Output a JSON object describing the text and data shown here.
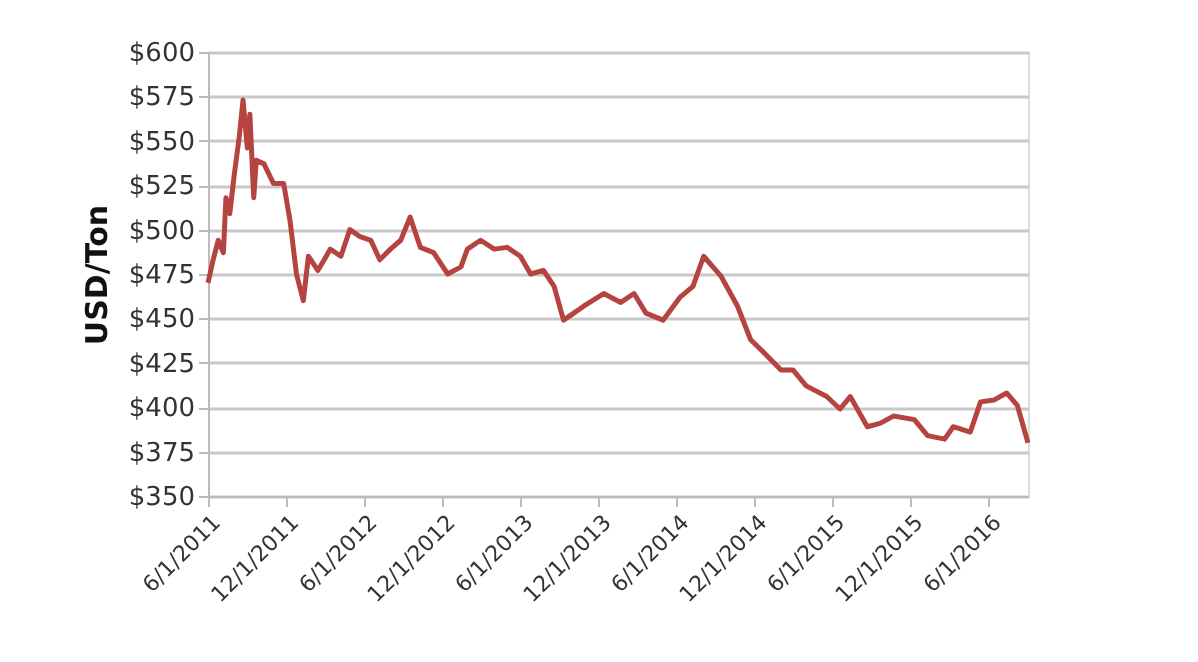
{
  "chart_data": {
    "type": "line",
    "ylabel": "USD/Ton",
    "x": [
      "2011-06-01",
      "2011-06-13",
      "2011-06-25",
      "2011-07-07",
      "2011-07-13",
      "2011-07-22",
      "2011-08-01",
      "2011-08-13",
      "2011-08-22",
      "2011-09-01",
      "2011-09-07",
      "2011-09-16",
      "2011-09-22",
      "2011-10-10",
      "2011-11-01",
      "2011-11-25",
      "2011-12-10",
      "2011-12-25",
      "2012-01-10",
      "2012-01-22",
      "2012-02-13",
      "2012-02-28",
      "2012-03-13",
      "2012-04-07",
      "2012-04-28",
      "2012-05-22",
      "2012-06-16",
      "2012-07-07",
      "2012-08-01",
      "2012-08-25",
      "2012-09-16",
      "2012-10-10",
      "2012-11-10",
      "2012-12-13",
      "2013-01-13",
      "2013-01-28",
      "2013-02-28",
      "2013-04-01",
      "2013-05-01",
      "2013-06-01",
      "2013-06-25",
      "2013-07-25",
      "2013-08-19",
      "2013-09-10",
      "2013-10-04",
      "2013-10-28",
      "2013-12-13",
      "2014-01-22",
      "2014-02-22",
      "2014-03-22",
      "2014-05-01",
      "2014-06-10",
      "2014-07-10",
      "2014-08-04",
      "2014-09-13",
      "2014-10-22",
      "2014-11-22",
      "2014-12-22",
      "2015-02-01",
      "2015-03-01",
      "2015-04-01",
      "2015-05-19",
      "2015-06-19",
      "2015-07-13",
      "2015-08-22",
      "2015-09-22",
      "2015-10-22",
      "2015-12-10",
      "2016-01-10",
      "2016-02-19",
      "2016-03-10",
      "2016-04-19",
      "2016-05-13",
      "2016-06-13",
      "2016-07-13",
      "2016-08-07",
      "2016-09-01"
    ],
    "series": [
      {
        "color": "#b5433f",
        "values": [
          470,
          483,
          494,
          487,
          518,
          509,
          530,
          552,
          573,
          546,
          565,
          518,
          539,
          537,
          526,
          526,
          505,
          475,
          460,
          485,
          477,
          483,
          489,
          485,
          500,
          496,
          494,
          483,
          489,
          494,
          507,
          490,
          487,
          475,
          479,
          489,
          494,
          489,
          490,
          485,
          475,
          477,
          468,
          449,
          453,
          457,
          464,
          459,
          464,
          453,
          449,
          462,
          468,
          485,
          474,
          457,
          438,
          431,
          421,
          421,
          412,
          406,
          399,
          406,
          389,
          391,
          395,
          393,
          384,
          382,
          389,
          386,
          403,
          404,
          408,
          401,
          380
        ]
      }
    ],
    "xlim": [
      "2011-06-01",
      "2016-09-01"
    ],
    "xticks": [
      {
        "value": "2011-06-01",
        "label": "6/1/2011"
      },
      {
        "value": "2011-12-01",
        "label": "12/1/2011"
      },
      {
        "value": "2012-06-01",
        "label": "6/1/2012"
      },
      {
        "value": "2012-12-01",
        "label": "12/1/2012"
      },
      {
        "value": "2013-06-01",
        "label": "6/1/2013"
      },
      {
        "value": "2013-12-01",
        "label": "12/1/2013"
      },
      {
        "value": "2014-06-01",
        "label": "6/1/2014"
      },
      {
        "value": "2014-12-01",
        "label": "12/1/2014"
      },
      {
        "value": "2015-06-01",
        "label": "6/1/2015"
      },
      {
        "value": "2015-12-01",
        "label": "12/1/2015"
      },
      {
        "value": "2016-06-01",
        "label": "6/1/2016"
      }
    ],
    "ylim": [
      350,
      600
    ],
    "yticks": [
      {
        "value": 350,
        "label": "$350"
      },
      {
        "value": 375,
        "label": "$375"
      },
      {
        "value": 400,
        "label": "$400"
      },
      {
        "value": 425,
        "label": "$425"
      },
      {
        "value": 450,
        "label": "$450"
      },
      {
        "value": 475,
        "label": "$475"
      },
      {
        "value": 500,
        "label": "$500"
      },
      {
        "value": 525,
        "label": "$525"
      },
      {
        "value": 550,
        "label": "$550"
      },
      {
        "value": 575,
        "label": "$575"
      },
      {
        "value": 600,
        "label": "$600"
      }
    ],
    "grid": "y",
    "legend": false,
    "marker": "none",
    "line_style": "solid"
  }
}
